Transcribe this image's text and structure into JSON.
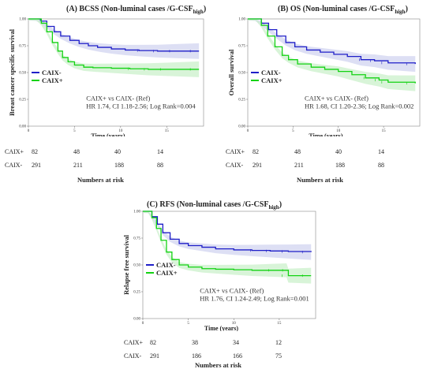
{
  "colors": {
    "caix_neg": "#1e1ec8",
    "caix_pos": "#12d212",
    "band_neg": "#cfd2f0",
    "band_pos": "#c8f0c8"
  },
  "chart_data": [
    {
      "type": "line",
      "id": "A",
      "title_main": "(A) BCSS (Non-luminal cases /G-CSF",
      "title_sub": "high",
      "title_close": ")",
      "ylabel": "Breast cancer specific survival",
      "xlabel": "Time (years)",
      "x_ticks": [
        "0",
        "5",
        "10",
        "15"
      ],
      "y_ticks": [
        "0.00",
        "0.25",
        "0.50",
        "0.75",
        "1.00"
      ],
      "xlim": [
        0,
        19
      ],
      "ylim": [
        0,
        1
      ],
      "legend": [
        "CAIX-",
        "CAIX+"
      ],
      "annotation": [
        "CAIX+ vs CAIX- (Ref)",
        "HR 1.74, CI 1.18-2.56; Log Rank=0.004"
      ],
      "series": [
        {
          "name": "CAIX-",
          "points": [
            [
              0,
              1
            ],
            [
              0.8,
              1
            ],
            [
              1.3,
              0.98
            ],
            [
              2,
              0.93
            ],
            [
              2.8,
              0.88
            ],
            [
              3.5,
              0.84
            ],
            [
              4.5,
              0.8
            ],
            [
              5.5,
              0.77
            ],
            [
              6.5,
              0.75
            ],
            [
              7.5,
              0.735
            ],
            [
              9,
              0.72
            ],
            [
              10.5,
              0.71
            ],
            [
              12,
              0.705
            ],
            [
              14,
              0.7
            ],
            [
              16,
              0.7
            ],
            [
              18.5,
              0.7
            ]
          ]
        },
        {
          "name": "CAIX+",
          "points": [
            [
              0,
              1
            ],
            [
              0.9,
              1
            ],
            [
              1.4,
              0.96
            ],
            [
              2,
              0.88
            ],
            [
              2.6,
              0.78
            ],
            [
              3.2,
              0.7
            ],
            [
              3.7,
              0.64
            ],
            [
              4.3,
              0.6
            ],
            [
              5,
              0.57
            ],
            [
              6,
              0.55
            ],
            [
              7,
              0.545
            ],
            [
              9,
              0.54
            ],
            [
              11,
              0.535
            ],
            [
              13,
              0.53
            ],
            [
              15,
              0.53
            ],
            [
              18.5,
              0.53
            ]
          ]
        }
      ],
      "risk_table": {
        "title": "Numbers at risk",
        "rows": [
          {
            "label": "CAIX+",
            "values": [
              "82",
              "48",
              "40",
              "14"
            ]
          },
          {
            "label": "CAIX-",
            "values": [
              "291",
              "211",
              "188",
              "88"
            ]
          }
        ]
      }
    },
    {
      "type": "line",
      "id": "B",
      "title_main": "(B) OS (Non-luminal cases /G-CSF",
      "title_sub": "high",
      "title_close": ")",
      "ylabel": "Overall survival",
      "xlabel": "Time (years)",
      "x_ticks": [
        "0",
        "5",
        "10",
        "15"
      ],
      "y_ticks": [
        "0.00",
        "0.25",
        "0.50",
        "0.75",
        "1.00"
      ],
      "xlim": [
        0,
        19
      ],
      "ylim": [
        0,
        1
      ],
      "legend": [
        "CAIX-",
        "CAIX+"
      ],
      "annotation": [
        "CAIX+ vs CAIX- (Ref)",
        "HR 1.68, CI 1.20-2.36; Log Rank=0.002"
      ],
      "series": [
        {
          "name": "CAIX-",
          "points": [
            [
              0,
              1
            ],
            [
              0.8,
              1
            ],
            [
              1.5,
              0.96
            ],
            [
              2.3,
              0.9
            ],
            [
              3.2,
              0.84
            ],
            [
              4.2,
              0.78
            ],
            [
              5.2,
              0.74
            ],
            [
              6.5,
              0.71
            ],
            [
              8,
              0.69
            ],
            [
              9.5,
              0.67
            ],
            [
              11,
              0.65
            ],
            [
              12.5,
              0.62
            ],
            [
              14,
              0.61
            ],
            [
              15.5,
              0.59
            ],
            [
              18.5,
              0.58
            ]
          ]
        },
        {
          "name": "CAIX+",
          "points": [
            [
              0,
              1
            ],
            [
              0.9,
              1
            ],
            [
              1.5,
              0.94
            ],
            [
              2.2,
              0.84
            ],
            [
              3,
              0.74
            ],
            [
              3.8,
              0.66
            ],
            [
              4.5,
              0.62
            ],
            [
              5.5,
              0.58
            ],
            [
              7,
              0.55
            ],
            [
              8.5,
              0.53
            ],
            [
              10,
              0.51
            ],
            [
              11.5,
              0.48
            ],
            [
              13,
              0.45
            ],
            [
              14.5,
              0.43
            ],
            [
              15.5,
              0.41
            ],
            [
              18.5,
              0.4
            ]
          ]
        }
      ],
      "risk_table": {
        "title": "Numbers at risk",
        "rows": [
          {
            "label": "CAIX+",
            "values": [
              "82",
              "48",
              "40",
              "14"
            ]
          },
          {
            "label": "CAIX-",
            "values": [
              "291",
              "211",
              "188",
              "88"
            ]
          }
        ]
      }
    },
    {
      "type": "line",
      "id": "C",
      "title_main": "(C) RFS (Non-luminal cases /G-CSF",
      "title_sub": "high",
      "title_close": ")",
      "ylabel": "Relapse free survival",
      "xlabel": "Time (years)",
      "x_ticks": [
        "0",
        "5",
        "10",
        "15"
      ],
      "y_ticks": [
        "0.00",
        "0.25",
        "0.50",
        "0.75",
        "1.00"
      ],
      "xlim": [
        0,
        19
      ],
      "ylim": [
        0,
        1
      ],
      "legend": [
        "CAIX-",
        "CAIX+"
      ],
      "annotation": [
        "CAIX+ vs CAIX- (Ref)",
        "HR 1.76, CI 1.24-2.49; Log Rank=0.001"
      ],
      "series": [
        {
          "name": "CAIX-",
          "points": [
            [
              0,
              1
            ],
            [
              0.6,
              1
            ],
            [
              1,
              0.95
            ],
            [
              1.6,
              0.88
            ],
            [
              2.2,
              0.8
            ],
            [
              3,
              0.74
            ],
            [
              4,
              0.7
            ],
            [
              5,
              0.68
            ],
            [
              6.5,
              0.665
            ],
            [
              8,
              0.65
            ],
            [
              10,
              0.64
            ],
            [
              12,
              0.635
            ],
            [
              14,
              0.63
            ],
            [
              16,
              0.625
            ],
            [
              18.5,
              0.62
            ]
          ]
        },
        {
          "name": "CAIX+",
          "points": [
            [
              0,
              1
            ],
            [
              0.6,
              1
            ],
            [
              1,
              0.94
            ],
            [
              1.5,
              0.84
            ],
            [
              2,
              0.73
            ],
            [
              2.6,
              0.62
            ],
            [
              3.2,
              0.55
            ],
            [
              4,
              0.5
            ],
            [
              5,
              0.48
            ],
            [
              6.5,
              0.465
            ],
            [
              8,
              0.46
            ],
            [
              10,
              0.455
            ],
            [
              12,
              0.45
            ],
            [
              14,
              0.45
            ],
            [
              15.8,
              0.45
            ],
            [
              16,
              0.4
            ],
            [
              18.5,
              0.4
            ]
          ]
        }
      ],
      "risk_table": {
        "title": "Numbers at risk",
        "rows": [
          {
            "label": "CAIX+",
            "values": [
              "82",
              "38",
              "34",
              "12"
            ]
          },
          {
            "label": "CAIX-",
            "values": [
              "291",
              "186",
              "166",
              "75"
            ]
          }
        ]
      }
    }
  ]
}
